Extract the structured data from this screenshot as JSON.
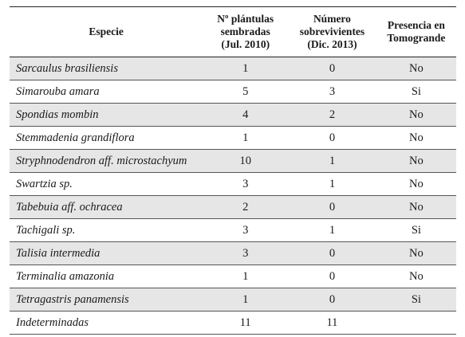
{
  "table": {
    "headers": {
      "species": "Especie",
      "planted": [
        "Nº plántulas",
        "sembradas",
        "(Jul. 2010)"
      ],
      "survivors": [
        "Número",
        "sobrevivientes",
        "(Dic. 2013)"
      ],
      "presence": [
        "Presencia en",
        "Tomogrande"
      ]
    },
    "rows": [
      {
        "species": "Sarcaulus brasiliensis",
        "planted": "1",
        "survivors": "0",
        "presence": "No"
      },
      {
        "species": "Simarouba amara",
        "planted": "5",
        "survivors": "3",
        "presence": "Si"
      },
      {
        "species": "Spondias mombin",
        "planted": "4",
        "survivors": "2",
        "presence": "No"
      },
      {
        "species": "Stemmadenia grandiflora",
        "planted": "1",
        "survivors": "0",
        "presence": "No"
      },
      {
        "species": "Stryphnodendron aff. microstachyum",
        "planted": "10",
        "survivors": "1",
        "presence": "No"
      },
      {
        "species": "Swartzia sp.",
        "planted": "3",
        "survivors": "1",
        "presence": "No"
      },
      {
        "species": "Tabebuia aff. ochracea",
        "planted": "2",
        "survivors": "0",
        "presence": "No"
      },
      {
        "species": "Tachigali sp.",
        "planted": "3",
        "survivors": "1",
        "presence": "Si"
      },
      {
        "species": "Talisia intermedia",
        "planted": "3",
        "survivors": "0",
        "presence": "No"
      },
      {
        "species": "Terminalia amazonia",
        "planted": "1",
        "survivors": "0",
        "presence": "No"
      },
      {
        "species": "Tetragastris panamensis",
        "planted": "1",
        "survivors": "0",
        "presence": "Si"
      },
      {
        "species": "Indeterminadas",
        "planted": "11",
        "survivors": "11",
        "presence": ""
      }
    ]
  }
}
